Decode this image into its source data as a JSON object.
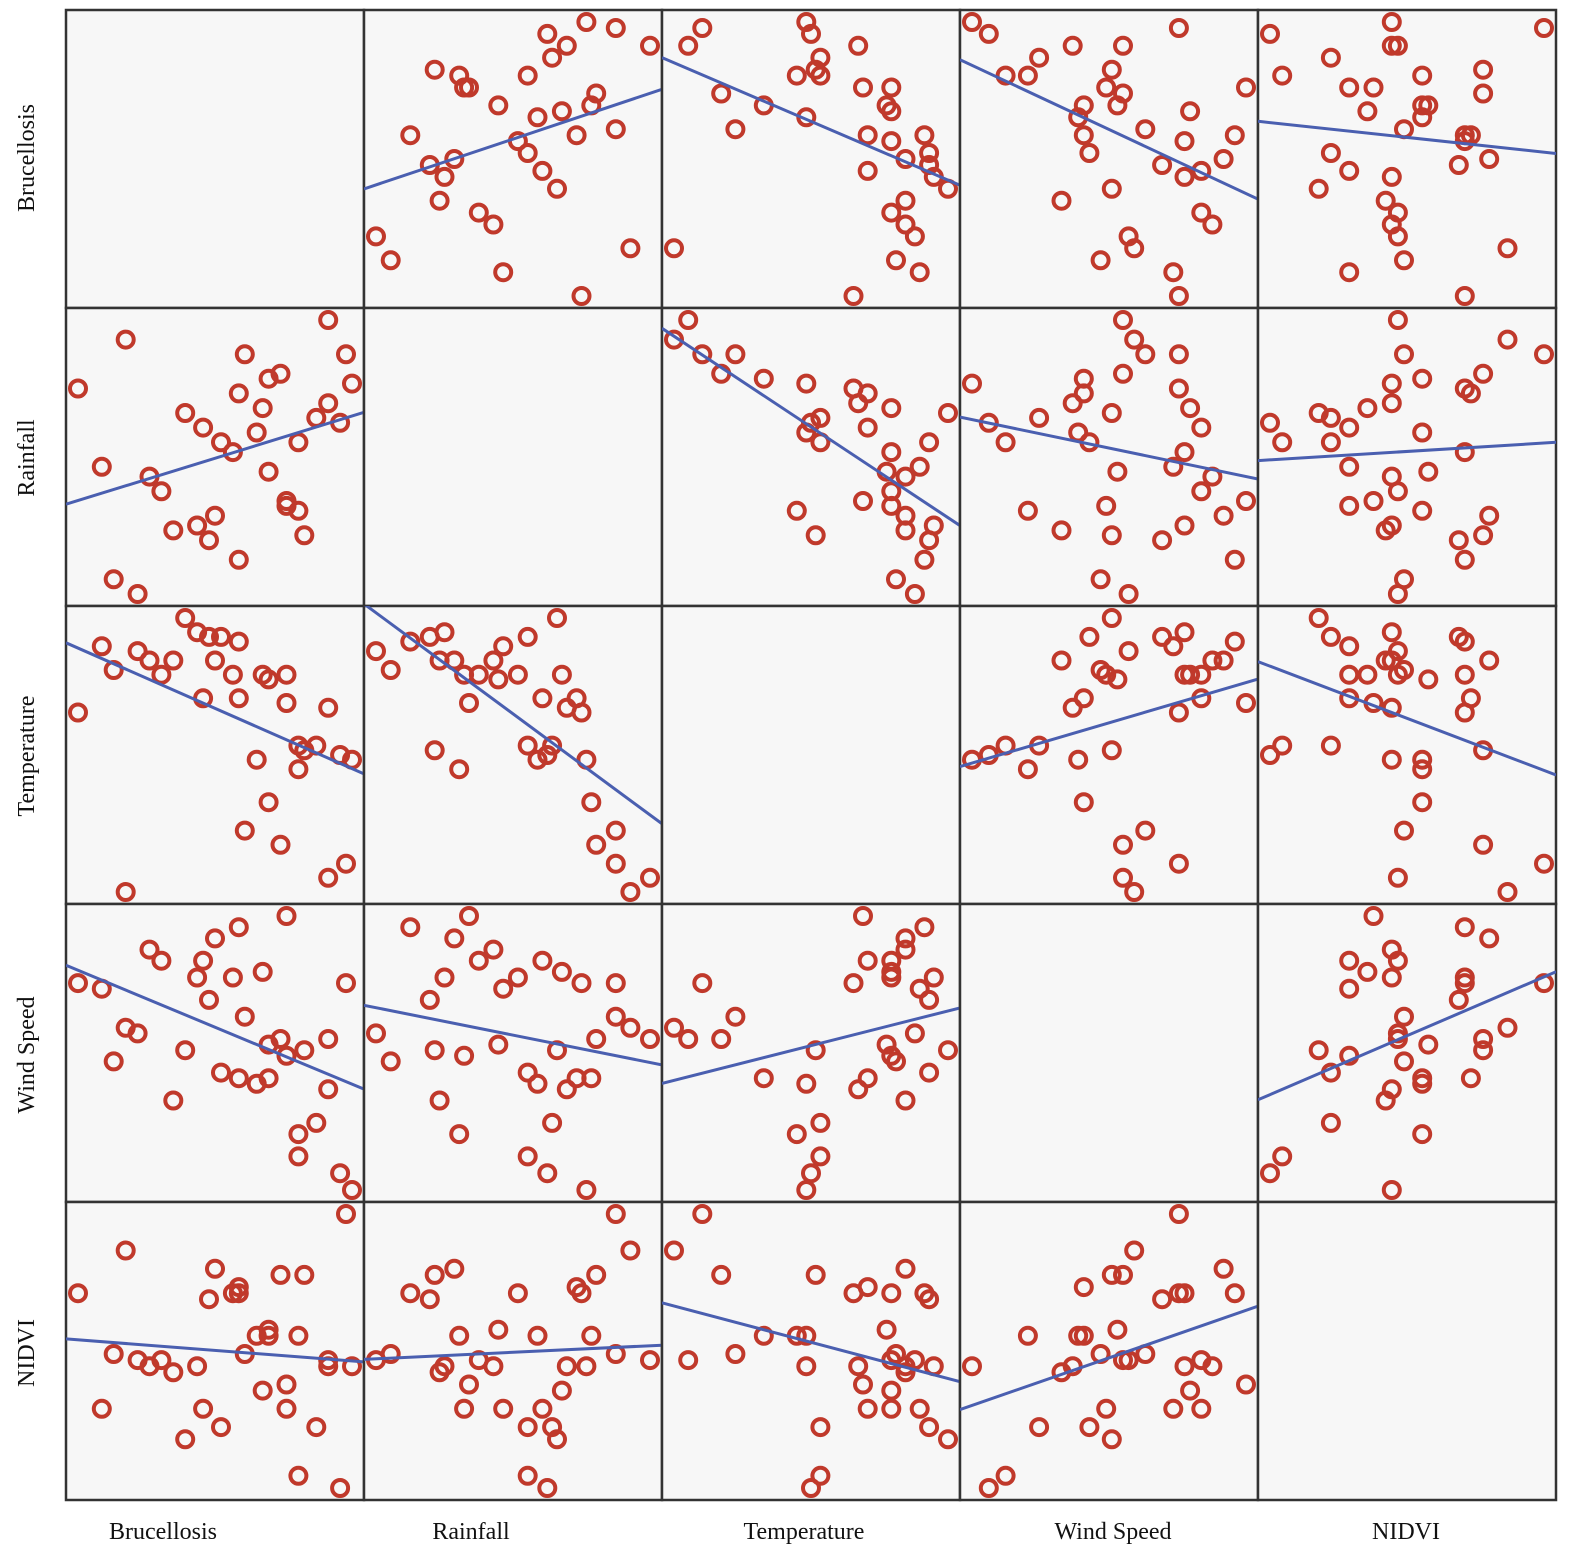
{
  "chart_data": {
    "type": "scatter",
    "variables": [
      "Brucellosis",
      "Rainfall",
      "Temperature",
      "Wind Speed",
      "NIDVI"
    ],
    "title": "",
    "grid": false,
    "axis_ticks": false,
    "diagonal": "empty",
    "colors": {
      "points": "#c0392b",
      "fit_line": "#4a5fb0",
      "panel_background": "#f7f7f7",
      "border": "#333333"
    },
    "observations": {
      "Brucellosis": [
        55,
        26,
        46,
        60,
        50,
        52,
        63,
        48,
        55,
        62,
        58,
        64,
        32,
        40,
        30,
        38,
        45,
        41,
        22,
        18,
        50,
        44,
        42,
        36,
        49,
        39,
        53,
        24,
        45,
        28,
        34,
        60,
        53,
        56
      ],
      "Rainfall": [
        44,
        79,
        76,
        83,
        71,
        72,
        76,
        60,
        58,
        62,
        63,
        70,
        48,
        38,
        51,
        41,
        34,
        43,
        53,
        69,
        52,
        56,
        58,
        64,
        65,
        61,
        46,
        30,
        68,
        27,
        40,
        66,
        45,
        39
      ],
      "Temperature": [
        50,
        24,
        37,
        27,
        43,
        34,
        30,
        52,
        55,
        53,
        55,
        52,
        70,
        78,
        73,
        79,
        77,
        73,
        76,
        62,
        69,
        70,
        78,
        82,
        70,
        65,
        64,
        71,
        65,
        75,
        73,
        63,
        70,
        54
      ],
      "Wind Speed": [
        43,
        62,
        64,
        60,
        53,
        60,
        70,
        52,
        39,
        36,
        45,
        33,
        74,
        67,
        76,
        71,
        80,
        78,
        69,
        70,
        59,
        71,
        54,
        58,
        72,
        74,
        82,
        56,
        53,
        61,
        49,
        51,
        57,
        58
      ],
      "NIDVI": [
        65,
        79,
        62,
        61,
        65,
        75,
        85,
        65,
        42,
        40,
        50,
        60,
        61,
        71,
        60,
        60,
        72,
        76,
        53,
        72,
        66,
        72,
        50,
        48,
        56,
        53,
        57,
        62,
        73,
        61,
        59,
        60,
        53,
        75
      ]
    }
  },
  "axis_labels": {
    "rows": [
      "Brucellosis",
      "Rainfall",
      "Temperature",
      "Wind Speed",
      "NIDVI"
    ],
    "columns": [
      "Brucellosis",
      "Rainfall",
      "Temperature",
      "Wind Speed",
      "NIDVI"
    ]
  }
}
